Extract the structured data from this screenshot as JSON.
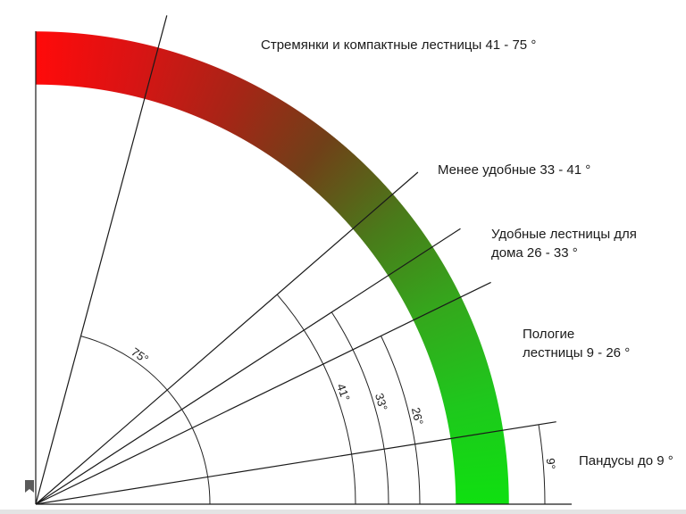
{
  "labels": {
    "ladders": "Стремянки и компактные лестницы 41 - 75 °",
    "less_comfortable": "Менее удобные 33 - 41 °",
    "comfortable_line1": "Удобные лестницы для",
    "comfortable_line2": "дома 26 - 33 °",
    "gentle_line1": "Пологие",
    "gentle_line2": "лестницы 9 - 26 °",
    "ramps": "Пандусы до 9 °"
  },
  "angles": [
    {
      "value": 75,
      "label": "75°"
    },
    {
      "value": 41,
      "label": "41°"
    },
    {
      "value": 33,
      "label": "33°"
    },
    {
      "value": 26,
      "label": "26°"
    },
    {
      "value": 9,
      "label": "9°"
    }
  ],
  "colors": {
    "band_gradient": [
      "#ff0a0a",
      "#d81414",
      "#a82416",
      "#704018",
      "#4a7a1a",
      "#34a81c",
      "#1ec81c",
      "#0fe010"
    ],
    "line": "#1a1a1a"
  },
  "icons": {
    "bookmark": "bookmark-icon"
  }
}
